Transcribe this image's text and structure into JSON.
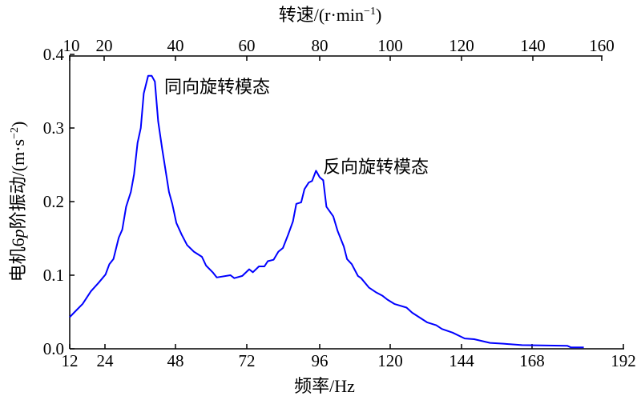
{
  "chart_data": {
    "type": "line",
    "title": "",
    "xlabel": "频率/Hz",
    "ylabel_parts": [
      "电机6",
      "p",
      "阶振动/(m·s",
      "−2",
      ")"
    ],
    "ylabel": "电机6p阶振动/(m·s−2)",
    "top_xlabel_parts": [
      "转速/(r·min",
      "−1",
      ")"
    ],
    "top_xlabel": "转速/(r·min−1)",
    "xlim": [
      12,
      192
    ],
    "ylim": [
      0,
      0.4
    ],
    "x_ticks": [
      12,
      24,
      48,
      72,
      96,
      120,
      144,
      168,
      192
    ],
    "x_tick_labels": [
      "12",
      "24",
      "48",
      "72",
      "96",
      "120",
      "144",
      "168",
      "192"
    ],
    "y_ticks": [
      0,
      0.1,
      0.2,
      0.3,
      0.4
    ],
    "y_tick_labels": [
      "0.0",
      "0.1",
      "0.2",
      "0.3",
      "0.4"
    ],
    "top_ticks": [
      10,
      20,
      40,
      60,
      80,
      100,
      120,
      140,
      160
    ],
    "top_tick_labels": [
      "10",
      "20",
      "40",
      "60",
      "80",
      "100",
      "120",
      "140",
      "160"
    ],
    "grid": false,
    "annotations": [
      {
        "text": "同向旋转模态",
        "x": 40.5,
        "y": 0.36
      },
      {
        "text": "反向旋转模态",
        "x": 96.5,
        "y": 0.248
      }
    ],
    "series": [
      {
        "name": "电机6p阶振动",
        "color": "#0000ff",
        "x": [
          12,
          13.7,
          16.4,
          19.2,
          21.9,
          24.2,
          25.5,
          26.9,
          28.7,
          29.9,
          31.2,
          32.8,
          33.9,
          35.1,
          36.2,
          37.2,
          38.7,
          39.9,
          41.0,
          42.1,
          43.5,
          45.8,
          46.9,
          48.3,
          50.1,
          51.9,
          54.2,
          56.9,
          58.3,
          60.5,
          61.9,
          66.5,
          67.8,
          70.5,
          72.8,
          74.0,
          76.0,
          77.8,
          78.9,
          80.8,
          82.4,
          83.9,
          85.6,
          87.2,
          88.3,
          89.9,
          91.0,
          92.4,
          93.5,
          94.8,
          96.0,
          97.2,
          98.3,
          100.6,
          102.1,
          104.2,
          105.3,
          106.9,
          109.0,
          110.1,
          112.8,
          115.1,
          117.4,
          119.0,
          121.4,
          125.5,
          127.4,
          132.4,
          135.5,
          137.4,
          141.0,
          145.1,
          148.3,
          153.7,
          158.3,
          164.6,
          177.3,
          178.2,
          181.6
        ],
        "y": [
          0.043,
          0.05,
          0.061,
          0.078,
          0.09,
          0.101,
          0.115,
          0.122,
          0.151,
          0.162,
          0.193,
          0.213,
          0.237,
          0.28,
          0.3,
          0.347,
          0.371,
          0.371,
          0.363,
          0.309,
          0.271,
          0.213,
          0.197,
          0.171,
          0.155,
          0.141,
          0.132,
          0.125,
          0.113,
          0.104,
          0.097,
          0.1,
          0.096,
          0.099,
          0.108,
          0.104,
          0.112,
          0.112,
          0.119,
          0.121,
          0.132,
          0.137,
          0.155,
          0.173,
          0.197,
          0.199,
          0.217,
          0.226,
          0.228,
          0.242,
          0.233,
          0.229,
          0.193,
          0.18,
          0.16,
          0.139,
          0.122,
          0.115,
          0.099,
          0.096,
          0.083,
          0.077,
          0.072,
          0.067,
          0.061,
          0.056,
          0.049,
          0.036,
          0.032,
          0.027,
          0.022,
          0.014,
          0.013,
          0.008,
          0.007,
          0.005,
          0.004,
          0.002,
          0.002
        ]
      }
    ]
  }
}
